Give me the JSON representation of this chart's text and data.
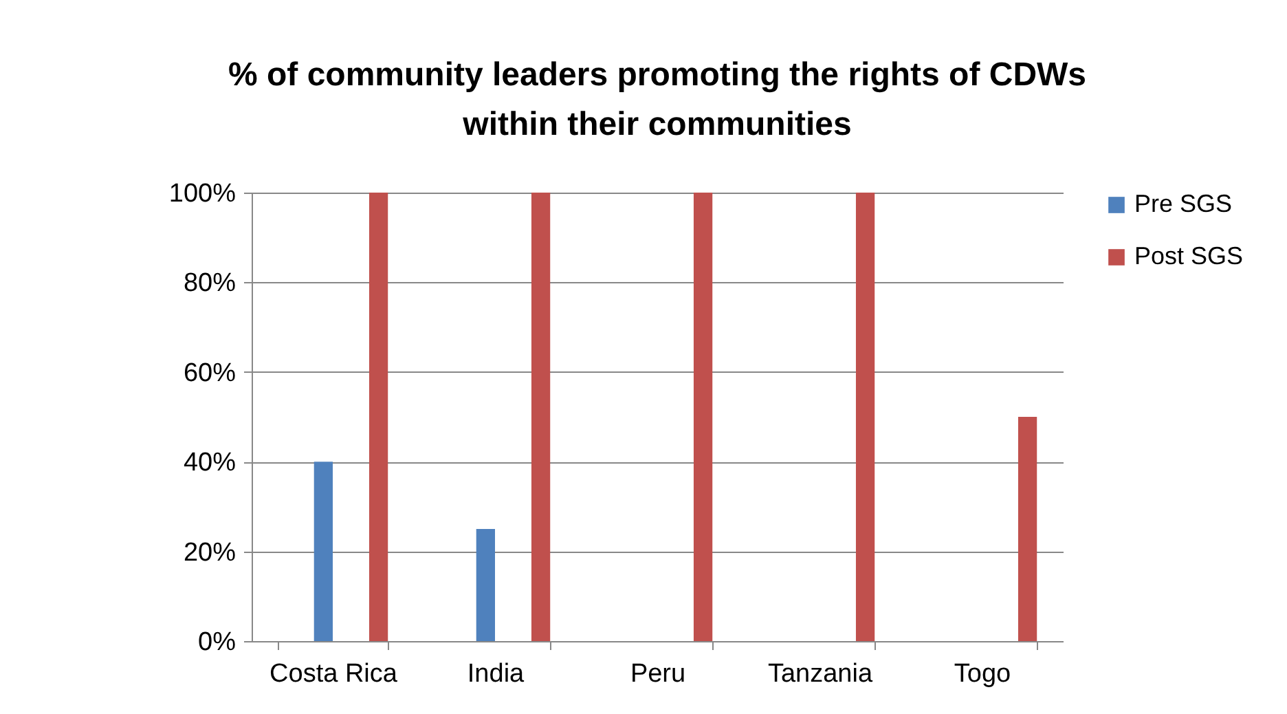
{
  "chart_data": {
    "type": "bar",
    "title": "% of community leaders promoting the rights of CDWs within their communities",
    "categories": [
      "Costa Rica",
      "India",
      "Peru",
      "Tanzania",
      "Togo"
    ],
    "series": [
      {
        "name": "Pre SGS",
        "color": "#4f81bd",
        "values": [
          40,
          25,
          0,
          0,
          0
        ]
      },
      {
        "name": "Post SGS",
        "color": "#c0504d",
        "values": [
          100,
          100,
          100,
          100,
          50
        ]
      }
    ],
    "ylim": [
      0,
      100
    ],
    "yticks": [
      {
        "value": 0,
        "label": "0%"
      },
      {
        "value": 20,
        "label": "20%"
      },
      {
        "value": 40,
        "label": "40%"
      },
      {
        "value": 60,
        "label": "60%"
      },
      {
        "value": 80,
        "label": "80%"
      },
      {
        "value": 100,
        "label": "100%"
      }
    ],
    "grid": "y",
    "legend": "right"
  }
}
